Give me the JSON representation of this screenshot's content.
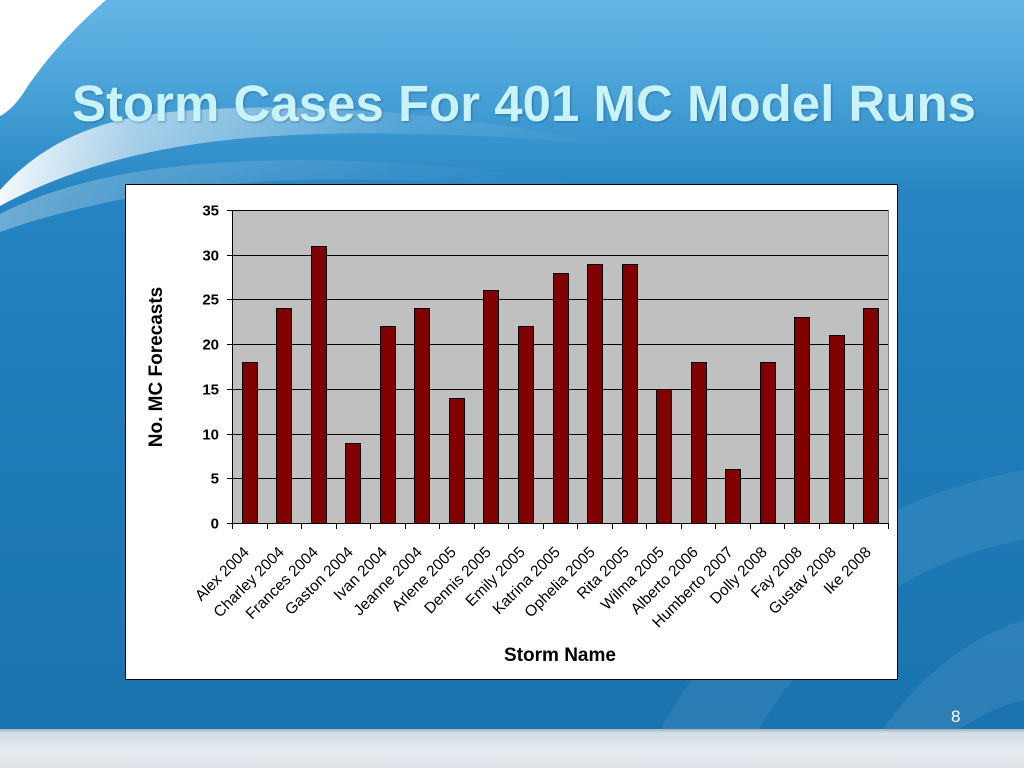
{
  "slide": {
    "page_number": "8"
  },
  "colors": {
    "background": "#1f7dbb",
    "title_text": "#c8f3fb",
    "chart_frame": "#ffffff",
    "plot_background": "#c0c0c0",
    "gridline": "#000000",
    "bar_fill": "#800000",
    "bar_stroke": "#000000",
    "page_number_text": "#ffffff"
  },
  "chart_data": {
    "type": "bar",
    "title": "Storm Cases For 401 MC Model Runs",
    "xlabel": "Storm Name",
    "ylabel": "No. MC Forecasts",
    "categories": [
      "Alex 2004",
      "Charley 2004",
      "Frances 2004",
      "Gaston 2004",
      "Ivan 2004",
      "Jeanne 2004",
      "Arlene 2005",
      "Dennis 2005",
      "Emily 2005",
      "Katrina 2005",
      "Ophelia 2005",
      "Rita 2005",
      "Wilma 2005",
      "Alberto 2006",
      "Humberto 2007",
      "Dolly 2008",
      "Fay 2008",
      "Gustav 2008",
      "Ike 2008"
    ],
    "values": [
      18,
      24,
      31,
      9,
      22,
      24,
      14,
      26,
      22,
      28,
      29,
      29,
      15,
      18,
      6,
      18,
      23,
      21,
      24
    ],
    "ylim": [
      0,
      35
    ],
    "yticks": [
      0,
      5,
      10,
      15,
      20,
      25,
      30,
      35
    ],
    "grid": true
  }
}
